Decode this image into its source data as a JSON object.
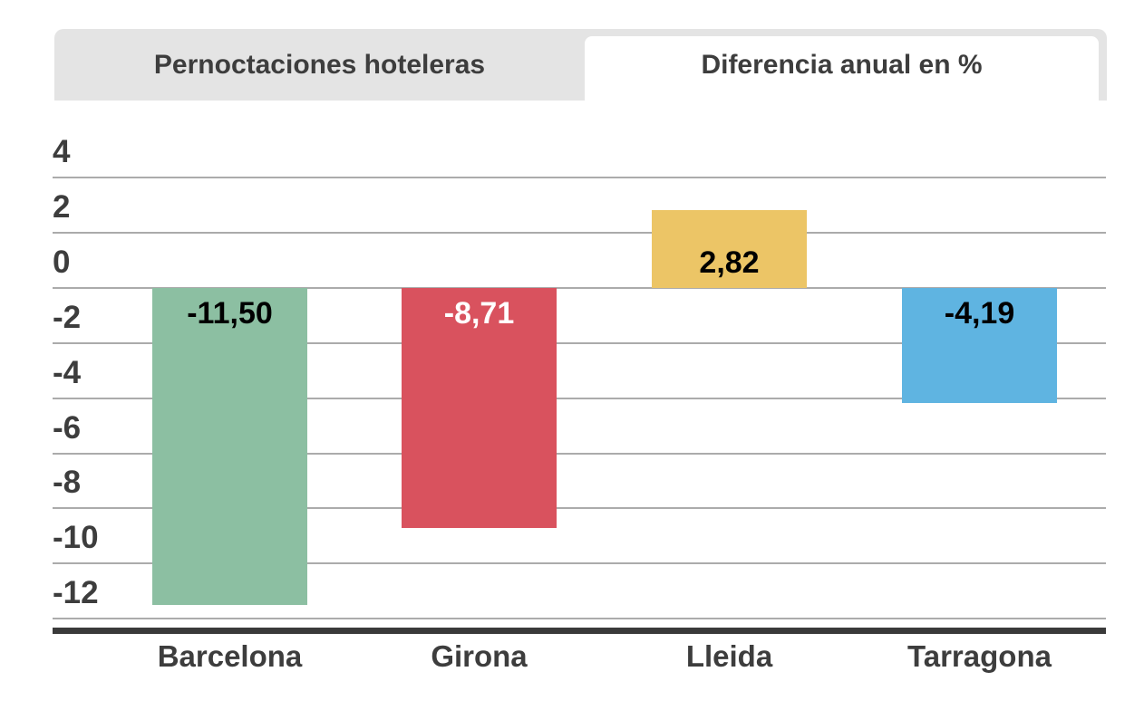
{
  "tabs": [
    {
      "label": "Pernoctaciones hoteleras",
      "active": false
    },
    {
      "label": "Diferencia anual en %",
      "active": true
    }
  ],
  "chart_data": {
    "type": "bar",
    "title": "Diferencia anual en %",
    "categories": [
      "Barcelona",
      "Girona",
      "Lleida",
      "Tarragona"
    ],
    "values": [
      -11.5,
      -8.71,
      2.82,
      -4.19
    ],
    "value_labels": [
      "-11,50",
      "-8,71",
      "2,82",
      "-4,19"
    ],
    "bar_colors": [
      "#8cbfa2",
      "#d9525e",
      "#ecc566",
      "#5fb4e1"
    ],
    "value_label_colors": [
      "#000000",
      "#ffffff",
      "#000000",
      "#000000"
    ],
    "yticks": [
      4,
      2,
      0,
      -2,
      -4,
      -6,
      -8,
      -10,
      -12
    ],
    "ylim": [
      -12.8,
      4.9
    ],
    "xlabel": "",
    "ylabel": "",
    "grid": true,
    "legend": false,
    "decimal_separator": ","
  },
  "colors": {
    "tab_inactive_bg": "#e4e4e4",
    "tab_active_bg": "#ffffff",
    "text_dark": "#3d3d3d",
    "gridline": "#ababab",
    "axis_line": "#3a3a3a",
    "background": "#ffffff"
  }
}
